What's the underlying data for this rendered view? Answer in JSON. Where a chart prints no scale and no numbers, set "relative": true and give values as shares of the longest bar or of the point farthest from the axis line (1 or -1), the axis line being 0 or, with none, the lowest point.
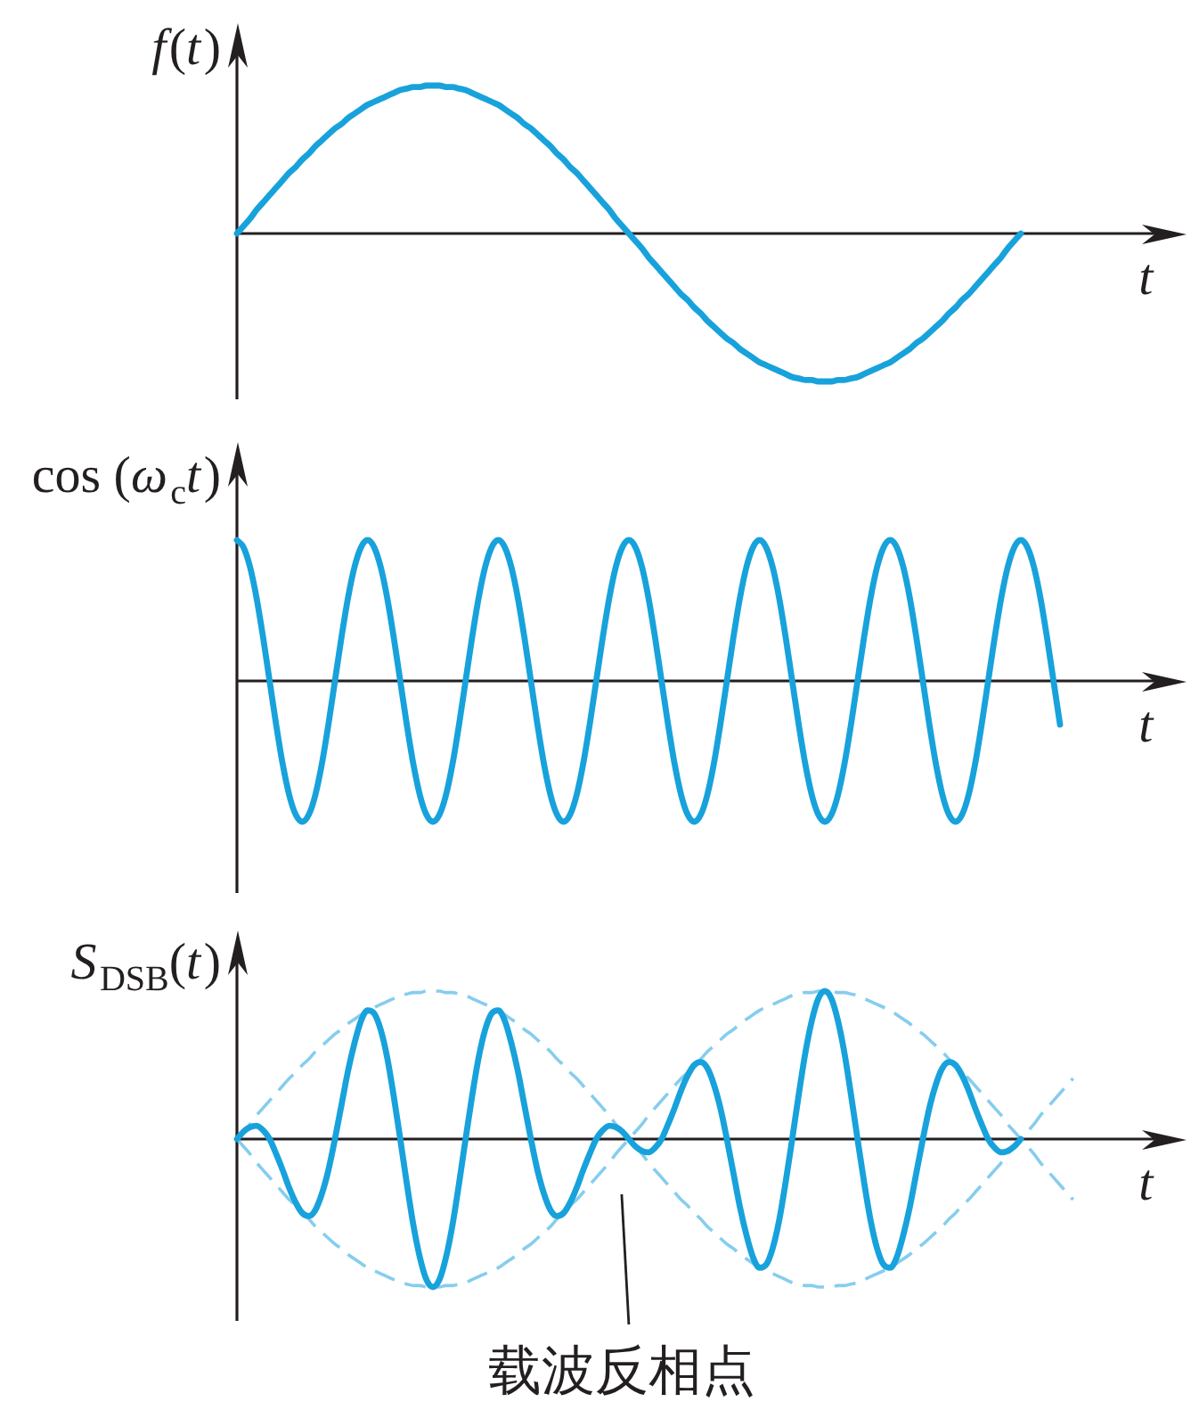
{
  "chart_data": [
    {
      "type": "line",
      "relative": true,
      "ylabel": "f(t)",
      "xlabel": "t",
      "categories": [
        null,
        null,
        null,
        null,
        null,
        null,
        null,
        null,
        null,
        null,
        null,
        null,
        null,
        null,
        null,
        null,
        null,
        null,
        null,
        null,
        null,
        null,
        null,
        null,
        null,
        null,
        null,
        null,
        null,
        null,
        null,
        null,
        null,
        null,
        null,
        null,
        null,
        null,
        null,
        null,
        null,
        null,
        null,
        null,
        null,
        null,
        null,
        null,
        null,
        null,
        null,
        null,
        null,
        null,
        null,
        null,
        null,
        null,
        null,
        null,
        null,
        null,
        null,
        null,
        null,
        null,
        null,
        null,
        null,
        null,
        null,
        null,
        null,
        null,
        null,
        null,
        null,
        null,
        null,
        null,
        null,
        null,
        null,
        null,
        null,
        null,
        null,
        null,
        null,
        null,
        null,
        null,
        null,
        null,
        null,
        null,
        null,
        null,
        null,
        null,
        null,
        null,
        null,
        null,
        null,
        null,
        null,
        null,
        null,
        null,
        null,
        null,
        null,
        null,
        null,
        null,
        null,
        null,
        null,
        null,
        null,
        null,
        null,
        null,
        null,
        null,
        null,
        null,
        null,
        null,
        null,
        null,
        null,
        null,
        null,
        null,
        null,
        null,
        null,
        null,
        null,
        null,
        null,
        null,
        null
      ],
      "series": [
        {
          "color": "#18a2dc",
          "values": [
            0,
            0.05,
            0.1,
            0.16,
            0.21,
            0.26,
            0.31,
            0.36,
            0.41,
            0.45,
            0.5,
            0.54,
            0.59,
            0.63,
            0.67,
            0.71,
            0.74,
            0.78,
            0.81,
            0.84,
            0.87,
            0.89,
            0.91,
            0.93,
            0.95,
            0.97,
            0.98,
            0.99,
            0.99,
            1,
            1,
            1,
            0.99,
            0.99,
            0.98,
            0.97,
            0.95,
            0.93,
            0.91,
            0.89,
            0.87,
            0.84,
            0.81,
            0.78,
            0.74,
            0.71,
            0.67,
            0.63,
            0.59,
            0.54,
            0.5,
            0.45,
            0.41,
            0.36,
            0.31,
            0.26,
            0.21,
            0.16,
            0.1,
            0.05,
            0,
            -0.05,
            -0.1,
            -0.16,
            -0.21,
            -0.26,
            -0.31,
            -0.36,
            -0.41,
            -0.45,
            -0.5,
            -0.54,
            -0.59,
            -0.63,
            -0.67,
            -0.71,
            -0.74,
            -0.78,
            -0.81,
            -0.84,
            -0.87,
            -0.89,
            -0.91,
            -0.93,
            -0.95,
            -0.97,
            -0.98,
            -0.99,
            -0.99,
            -1,
            -1,
            -1,
            -0.99,
            -0.99,
            -0.98,
            -0.97,
            -0.95,
            -0.93,
            -0.91,
            -0.89,
            -0.87,
            -0.84,
            -0.81,
            -0.78,
            -0.74,
            -0.71,
            -0.67,
            -0.63,
            -0.59,
            -0.54,
            -0.5,
            -0.45,
            -0.41,
            -0.36,
            -0.31,
            -0.26,
            -0.21,
            -0.16,
            -0.1,
            -0.05,
            0,
            null,
            null,
            null,
            null,
            null,
            null,
            null,
            null,
            null,
            null,
            null,
            null,
            null,
            null,
            null,
            null,
            null,
            null,
            null,
            null,
            null,
            null,
            null,
            null
          ]
        }
      ]
    },
    {
      "type": "line",
      "relative": true,
      "ylabel": "cos (ω$_{c}$t)",
      "xlabel": "t",
      "categories": [
        null,
        null,
        null,
        null,
        null,
        null,
        null,
        null,
        null,
        null,
        null,
        null,
        null,
        null,
        null,
        null,
        null,
        null,
        null,
        null,
        null,
        null,
        null,
        null,
        null,
        null,
        null,
        null,
        null,
        null,
        null,
        null,
        null,
        null,
        null,
        null,
        null,
        null,
        null,
        null,
        null,
        null,
        null,
        null,
        null,
        null,
        null,
        null,
        null,
        null,
        null,
        null,
        null,
        null,
        null,
        null,
        null,
        null,
        null,
        null,
        null,
        null,
        null,
        null,
        null,
        null,
        null,
        null,
        null,
        null,
        null,
        null,
        null,
        null,
        null,
        null,
        null,
        null,
        null,
        null,
        null,
        null,
        null,
        null,
        null,
        null,
        null,
        null,
        null,
        null,
        null,
        null,
        null,
        null,
        null,
        null,
        null,
        null,
        null,
        null,
        null,
        null,
        null,
        null,
        null,
        null,
        null,
        null,
        null,
        null,
        null,
        null,
        null,
        null,
        null,
        null,
        null,
        null,
        null,
        null,
        null,
        null,
        null,
        null,
        null,
        null,
        null,
        null,
        null,
        null,
        null,
        null,
        null,
        null,
        null,
        null,
        null,
        null,
        null,
        null,
        null,
        null,
        null,
        null,
        null
      ],
      "series": [
        {
          "color": "#18a2dc",
          "values": [
            1,
            0.95,
            0.81,
            0.59,
            0.31,
            0,
            -0.31,
            -0.59,
            -0.81,
            -0.95,
            -1,
            -0.95,
            -0.81,
            -0.59,
            -0.31,
            0,
            0.31,
            0.59,
            0.81,
            0.95,
            1,
            0.95,
            0.81,
            0.59,
            0.31,
            0,
            -0.31,
            -0.59,
            -0.81,
            -0.95,
            -1,
            -0.95,
            -0.81,
            -0.59,
            -0.31,
            0,
            0.31,
            0.59,
            0.81,
            0.95,
            1,
            0.95,
            0.81,
            0.59,
            0.31,
            0,
            -0.31,
            -0.59,
            -0.81,
            -0.95,
            -1,
            -0.95,
            -0.81,
            -0.59,
            -0.31,
            0,
            0.31,
            0.59,
            0.81,
            0.95,
            1,
            0.95,
            0.81,
            0.59,
            0.31,
            0,
            -0.31,
            -0.59,
            -0.81,
            -0.95,
            -1,
            -0.95,
            -0.81,
            -0.59,
            -0.31,
            0,
            0.31,
            0.59,
            0.81,
            0.95,
            1,
            0.95,
            0.81,
            0.59,
            0.31,
            0,
            -0.31,
            -0.59,
            -0.81,
            -0.95,
            -1,
            -0.95,
            -0.81,
            -0.59,
            -0.31,
            0,
            0.31,
            0.59,
            0.81,
            0.95,
            1,
            0.95,
            0.81,
            0.59,
            0.31,
            0,
            -0.31,
            -0.59,
            -0.81,
            -0.95,
            -1,
            -0.95,
            -0.81,
            -0.59,
            -0.31,
            0,
            0.31,
            0.59,
            0.81,
            0.95,
            1,
            0.95,
            0.81,
            0.59,
            0.31,
            0,
            -0.31,
            null,
            null,
            null,
            null,
            null,
            null,
            null,
            null,
            null,
            null,
            null,
            null,
            null,
            null,
            null,
            null,
            null,
            null
          ]
        }
      ]
    },
    {
      "type": "line",
      "relative": true,
      "ylabel": "S$_{DSB}$(t)",
      "xlabel": "t",
      "annotations": [
        "载波反相点"
      ],
      "categories": [
        null,
        null,
        null,
        null,
        null,
        null,
        null,
        null,
        null,
        null,
        null,
        null,
        null,
        null,
        null,
        null,
        null,
        null,
        null,
        null,
        null,
        null,
        null,
        null,
        null,
        null,
        null,
        null,
        null,
        null,
        null,
        null,
        null,
        null,
        null,
        null,
        null,
        null,
        null,
        null,
        null,
        null,
        null,
        null,
        null,
        null,
        null,
        null,
        null,
        null,
        null,
        null,
        null,
        null,
        null,
        null,
        null,
        null,
        null,
        null,
        null,
        null,
        null,
        null,
        null,
        null,
        null,
        null,
        null,
        null,
        null,
        null,
        null,
        null,
        null,
        null,
        null,
        null,
        null,
        null,
        null,
        null,
        null,
        null,
        null,
        null,
        null,
        null,
        null,
        null,
        null,
        null,
        null,
        null,
        null,
        null,
        null,
        null,
        null,
        null,
        null,
        null,
        null,
        null,
        null,
        null,
        null,
        null,
        null,
        null,
        null,
        null,
        null,
        null,
        null,
        null,
        null,
        null,
        null,
        null,
        null,
        null,
        null,
        null,
        null,
        null,
        null,
        null,
        null,
        null,
        null,
        null,
        null,
        null,
        null,
        null,
        null,
        null,
        null,
        null,
        null,
        null,
        null,
        null,
        null
      ],
      "series": [
        {
          "color": "#18a2dc",
          "values": [
            0,
            0.05,
            0.08,
            0.09,
            0.06,
            0,
            -0.1,
            -0.21,
            -0.33,
            -0.43,
            -0.5,
            -0.52,
            -0.48,
            -0.37,
            -0.21,
            0,
            0.23,
            0.46,
            0.65,
            0.8,
            0.87,
            0.85,
            0.74,
            0.55,
            0.29,
            0,
            -0.3,
            -0.58,
            -0.8,
            -0.95,
            -1,
            -0.95,
            -0.8,
            -0.58,
            -0.3,
            0,
            0.29,
            0.55,
            0.74,
            0.85,
            0.87,
            0.8,
            0.65,
            0.46,
            0.23,
            0,
            -0.21,
            -0.37,
            -0.48,
            -0.52,
            -0.5,
            -0.43,
            -0.33,
            -0.21,
            -0.1,
            0,
            0.06,
            0.09,
            0.08,
            0.05,
            0,
            -0.05,
            -0.08,
            -0.09,
            -0.06,
            0,
            0.1,
            0.21,
            0.33,
            0.43,
            0.5,
            0.52,
            0.48,
            0.37,
            0.21,
            0,
            -0.23,
            -0.46,
            -0.65,
            -0.8,
            -0.87,
            -0.85,
            -0.74,
            -0.55,
            -0.29,
            0,
            0.3,
            0.58,
            0.8,
            0.95,
            1,
            0.95,
            0.8,
            0.58,
            0.3,
            0,
            -0.29,
            -0.55,
            -0.74,
            -0.85,
            -0.87,
            -0.8,
            -0.65,
            -0.46,
            -0.23,
            0,
            0.21,
            0.37,
            0.48,
            0.52,
            0.5,
            0.43,
            0.33,
            0.21,
            0.1,
            0,
            -0.06,
            -0.09,
            -0.08,
            -0.05,
            0,
            null,
            null,
            null,
            null,
            null,
            null,
            null,
            null,
            null,
            null,
            null,
            null,
            null,
            null,
            null,
            null,
            null,
            null,
            null,
            null,
            null,
            null,
            null,
            null
          ]
        },
        {
          "color": "#86cdee",
          "line_style": "dashed",
          "values": [
            0,
            0.05,
            0.1,
            0.16,
            0.21,
            0.26,
            0.31,
            0.36,
            0.41,
            0.45,
            0.5,
            0.54,
            0.59,
            0.63,
            0.67,
            0.71,
            0.74,
            0.78,
            0.81,
            0.84,
            0.87,
            0.89,
            0.91,
            0.93,
            0.95,
            0.97,
            0.98,
            0.99,
            0.99,
            1,
            1,
            1,
            0.99,
            0.99,
            0.98,
            0.97,
            0.95,
            0.93,
            0.91,
            0.89,
            0.87,
            0.84,
            0.81,
            0.78,
            0.74,
            0.71,
            0.67,
            0.63,
            0.59,
            0.54,
            0.5,
            0.45,
            0.41,
            0.36,
            0.31,
            0.26,
            0.21,
            0.16,
            0.1,
            0.05,
            0,
            -0.05,
            -0.1,
            -0.16,
            -0.21,
            -0.26,
            -0.31,
            -0.36,
            -0.41,
            -0.45,
            -0.5,
            -0.54,
            -0.59,
            -0.63,
            -0.67,
            -0.71,
            -0.74,
            -0.78,
            -0.81,
            -0.84,
            -0.87,
            -0.89,
            -0.91,
            -0.93,
            -0.95,
            -0.97,
            -0.98,
            -0.99,
            -0.99,
            -1,
            -1,
            -1,
            -0.99,
            -0.99,
            -0.98,
            -0.97,
            -0.95,
            -0.93,
            -0.91,
            -0.89,
            -0.87,
            -0.84,
            -0.81,
            -0.78,
            -0.74,
            -0.71,
            -0.67,
            -0.63,
            -0.59,
            -0.54,
            -0.5,
            -0.45,
            -0.41,
            -0.36,
            -0.31,
            -0.26,
            -0.21,
            -0.16,
            -0.1,
            -0.05,
            0,
            0.05,
            0.1,
            0.16,
            0.21,
            0.26,
            0.31,
            0.36,
            0.41,
            null,
            null,
            null,
            null,
            null,
            null,
            null,
            null,
            null,
            null,
            null,
            null,
            null,
            null,
            null,
            null
          ]
        },
        {
          "color": "#86cdee",
          "line_style": "dashed",
          "values": [
            0,
            -0.05,
            -0.1,
            -0.16,
            -0.21,
            -0.26,
            -0.31,
            -0.36,
            -0.41,
            -0.45,
            -0.5,
            -0.54,
            -0.59,
            -0.63,
            -0.67,
            -0.71,
            -0.74,
            -0.78,
            -0.81,
            -0.84,
            -0.87,
            -0.89,
            -0.91,
            -0.93,
            -0.95,
            -0.97,
            -0.98,
            -0.99,
            -0.99,
            -1,
            -1,
            -1,
            -0.99,
            -0.99,
            -0.98,
            -0.97,
            -0.95,
            -0.93,
            -0.91,
            -0.89,
            -0.87,
            -0.84,
            -0.81,
            -0.78,
            -0.74,
            -0.71,
            -0.67,
            -0.63,
            -0.59,
            -0.54,
            -0.5,
            -0.45,
            -0.41,
            -0.36,
            -0.31,
            -0.26,
            -0.21,
            -0.16,
            -0.1,
            -0.05,
            0,
            0.05,
            0.1,
            0.16,
            0.21,
            0.26,
            0.31,
            0.36,
            0.41,
            0.45,
            0.5,
            0.54,
            0.59,
            0.63,
            0.67,
            0.71,
            0.74,
            0.78,
            0.81,
            0.84,
            0.87,
            0.89,
            0.91,
            0.93,
            0.95,
            0.97,
            0.98,
            0.99,
            0.99,
            1,
            1,
            1,
            0.99,
            0.99,
            0.98,
            0.97,
            0.95,
            0.93,
            0.91,
            0.89,
            0.87,
            0.84,
            0.81,
            0.78,
            0.74,
            0.71,
            0.67,
            0.63,
            0.59,
            0.54,
            0.5,
            0.45,
            0.41,
            0.36,
            0.31,
            0.26,
            0.21,
            0.16,
            0.1,
            0.05,
            0,
            -0.05,
            -0.1,
            -0.16,
            -0.21,
            -0.26,
            -0.31,
            -0.36,
            -0.41,
            null,
            null,
            null,
            null,
            null,
            null,
            null,
            null,
            null,
            null,
            null,
            null,
            null,
            null,
            null,
            null
          ]
        }
      ]
    }
  ]
}
